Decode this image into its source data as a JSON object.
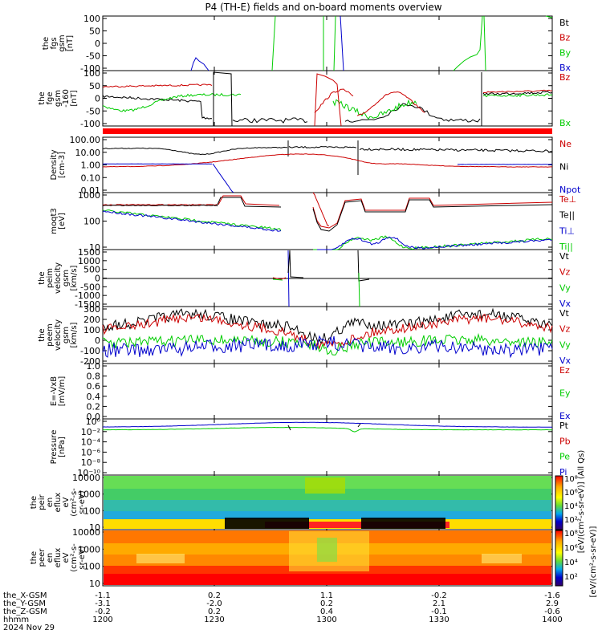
{
  "title": "P4 (TH-E) fields and on-board moments overview",
  "colors": {
    "black": "#000000",
    "red": "#cc0000",
    "green": "#00cc00",
    "blue": "#0000cc"
  },
  "panels": [
    {
      "id": "fgs",
      "ylabel": [
        "the",
        "fgs",
        "gsm",
        "[nT]"
      ],
      "ticks": [
        "100",
        "50",
        "0",
        "-50",
        "-100"
      ],
      "legend": [
        {
          "text": "Bt",
          "color": "black"
        },
        {
          "text": "Bz",
          "color": "red"
        },
        {
          "text": "By",
          "color": "green"
        },
        {
          "text": "Bx",
          "color": "blue"
        }
      ]
    },
    {
      "id": "fge",
      "ylabel": [
        "the",
        "fge",
        "gsm",
        "-160",
        "[nT]"
      ],
      "ticks": [
        "100",
        "50",
        "0",
        "-50",
        "-100"
      ],
      "legend": [
        {
          "text": "Bz",
          "color": "red"
        },
        {
          "text": "Bx",
          "color": "green"
        }
      ]
    },
    {
      "id": "density",
      "ylabel": [
        "Density",
        "[cm-3]"
      ],
      "ticks": [
        "100.00",
        "10.00",
        "1.00",
        "0.10",
        "0.01"
      ],
      "legend": [
        {
          "text": "Ne",
          "color": "red"
        },
        {
          "text": "Ni",
          "color": "black"
        },
        {
          "text": "Npot",
          "color": "blue"
        }
      ]
    },
    {
      "id": "temp",
      "ylabel": [
        "moqt3",
        "[eV]"
      ],
      "ticks": [
        "1000",
        "100",
        "10"
      ],
      "legend": [
        {
          "text": "Te⊥",
          "color": "red"
        },
        {
          "text": "Te||",
          "color": "black"
        },
        {
          "text": "Ti⊥",
          "color": "blue"
        },
        {
          "text": "Ti||",
          "color": "green"
        }
      ]
    },
    {
      "id": "peim",
      "ylabel": [
        "the",
        "peim",
        "velocity",
        "gsm",
        "[km/s]"
      ],
      "ticks": [
        "1500",
        "1000",
        "500",
        "0",
        "-500",
        "-1000",
        "-1500"
      ],
      "legend": [
        {
          "text": "Vt",
          "color": "black"
        },
        {
          "text": "Vz",
          "color": "red"
        },
        {
          "text": "Vy",
          "color": "green"
        },
        {
          "text": "Vx",
          "color": "blue"
        }
      ]
    },
    {
      "id": "peem",
      "ylabel": [
        "the",
        "peem",
        "velocity",
        "gsm",
        "[km/s]"
      ],
      "ticks": [
        "300",
        "200",
        "100",
        "0",
        "-100",
        "-200"
      ],
      "legend": [
        {
          "text": "Vt",
          "color": "black"
        },
        {
          "text": "Vz",
          "color": "red"
        },
        {
          "text": "Vy",
          "color": "green"
        },
        {
          "text": "Vx",
          "color": "blue"
        }
      ]
    },
    {
      "id": "efield",
      "ylabel": [
        "E=-VxB",
        "[mV/m]"
      ],
      "ticks": [
        "1.0",
        "0.8",
        "0.6",
        "0.4",
        "0.2",
        "0.0"
      ],
      "legend": [
        {
          "text": "Ez",
          "color": "red"
        },
        {
          "text": "Ey",
          "color": "green"
        },
        {
          "text": "Ex",
          "color": "blue"
        }
      ]
    },
    {
      "id": "pressure",
      "ylabel": [
        "Pressure",
        "[nPa]"
      ],
      "ticks": [
        "10⁰",
        "10⁻²",
        "10⁻⁴",
        "10⁻⁶",
        "10⁻⁸",
        "10⁻¹⁰"
      ],
      "legend": [
        {
          "text": "Pt",
          "color": "black"
        },
        {
          "text": "Pb",
          "color": "red"
        },
        {
          "text": "Pe",
          "color": "green"
        },
        {
          "text": "Pi",
          "color": "blue"
        }
      ]
    },
    {
      "id": "peir",
      "ylabel": [
        "the",
        "peir",
        "en",
        "eflux",
        "eV",
        "(cm²-s-",
        "sr-eV)"
      ],
      "ticks": [
        "10000",
        "1000",
        "100",
        "10"
      ]
    },
    {
      "id": "peer",
      "ylabel": [
        "the",
        "peer",
        "en",
        "eflux",
        "eV",
        "(cm²-s-",
        "sr-eV)"
      ],
      "ticks": [
        "10000",
        "1000",
        "100",
        "10"
      ]
    }
  ],
  "colorbar": {
    "peir_ticks": [
      "10⁸",
      "10⁶",
      "10⁴",
      "10²"
    ],
    "peer_ticks": [
      "10⁸",
      "10⁶",
      "10⁴",
      "10²"
    ],
    "label_peir": "[eV/(cm²-s-sr-eV)] (All Qs)",
    "label_peer": "[eV/(cm²-s-sr-eV)]"
  },
  "ephemeris": {
    "rows": [
      {
        "label": "the_X-GSM",
        "values": [
          "-1.1",
          "0.2",
          "1.1",
          "-0.2",
          "-1.6"
        ]
      },
      {
        "label": "the_Y-GSM",
        "values": [
          "-3.1",
          "-2.0",
          "0.2",
          "2.1",
          "2.9"
        ]
      },
      {
        "label": "the_Z-GSM",
        "values": [
          "-0.2",
          "0.2",
          "0.4",
          "-0.1",
          "-0.6"
        ]
      },
      {
        "label": "hhmm",
        "values": [
          "1200",
          "1230",
          "1300",
          "1330",
          "1400"
        ]
      }
    ],
    "date": "2024 Nov 29"
  },
  "chart_data": {
    "type": "line",
    "title": "P4 (TH-E) fields and on-board moments overview",
    "x": [
      "1200",
      "1230",
      "1300",
      "1330",
      "1400"
    ],
    "xlabel": "hhmm",
    "panels": [
      {
        "name": "the fgs gsm [nT]",
        "ylim": [
          -100,
          100
        ],
        "series": [
          {
            "name": "By",
            "x": [
              "1200",
              "1230",
              "1300",
              "1330",
              "1400"
            ],
            "values": [
              null,
              null,
              null,
              null,
              null
            ]
          },
          {
            "name": "Bx",
            "x": [
              "1200",
              "1230",
              "1300",
              "1330",
              "1400"
            ],
            "values": [
              null,
              -100,
              null,
              null,
              null
            ]
          }
        ]
      },
      {
        "name": "the fge gsm -160 [nT]",
        "ylim": [
          -100,
          100
        ],
        "series": [
          {
            "name": "Bt",
            "values": [
              20,
              -40,
              -10,
              -100,
              0
            ]
          },
          {
            "name": "Bz",
            "values": [
              40,
              -60,
              30,
              -100,
              40
            ]
          },
          {
            "name": "Bx",
            "values": [
              20,
              -20,
              -60,
              -100,
              10
            ]
          }
        ]
      },
      {
        "name": "Density [cm-3]",
        "scale": "log",
        "ylim": [
          0.01,
          100
        ],
        "series": [
          {
            "name": "Ni",
            "values": [
              20,
              15,
              30,
              30,
              25
            ]
          },
          {
            "name": "Ne",
            "values": [
              0.6,
              3,
              8,
              5,
              0.7
            ]
          },
          {
            "name": "Npot",
            "values": [
              1.2,
              0.02,
              null,
              1.0,
              1.1
            ]
          }
        ]
      },
      {
        "name": "moqt3 [eV]",
        "scale": "log",
        "ylim": [
          4,
          2000
        ],
        "series": [
          {
            "name": "Te||",
            "values": [
              1000,
              800,
              60,
              800,
              900
            ]
          },
          {
            "name": "Ti||",
            "values": [
              500,
              50,
              4,
              15,
              40
            ]
          }
        ]
      },
      {
        "name": "the peim velocity gsm [km/s]",
        "ylim": [
          -1500,
          1500
        ],
        "series": [
          {
            "name": "Vt",
            "values": [
              null,
              0,
              0,
              null,
              null
            ]
          }
        ]
      },
      {
        "name": "the peem velocity gsm [km/s]",
        "ylim": [
          -200,
          300
        ],
        "series": [
          {
            "name": "Vt",
            "values": [
              120,
              240,
              10,
              240,
              100
            ]
          },
          {
            "name": "Vz",
            "values": [
              100,
              220,
              -20,
              210,
              80
            ]
          },
          {
            "name": "Vy",
            "values": [
              -10,
              20,
              -80,
              30,
              -10
            ]
          },
          {
            "name": "Vx",
            "values": [
              -80,
              -30,
              -20,
              -40,
              -90
            ]
          }
        ]
      },
      {
        "name": "E=-VxB [mV/m]",
        "ylim": [
          0,
          1
        ],
        "series": []
      },
      {
        "name": "Pressure [nPa]",
        "scale": "log",
        "ylim": [
          1e-10,
          1
        ],
        "series": [
          {
            "name": "Pt",
            "values": [
              0.1,
              0.3,
              0.5,
              0.3,
              0.1
            ]
          },
          {
            "name": "Pe",
            "values": [
              0.03,
              0.05,
              0.01,
              0.05,
              0.03
            ]
          }
        ]
      }
    ]
  }
}
